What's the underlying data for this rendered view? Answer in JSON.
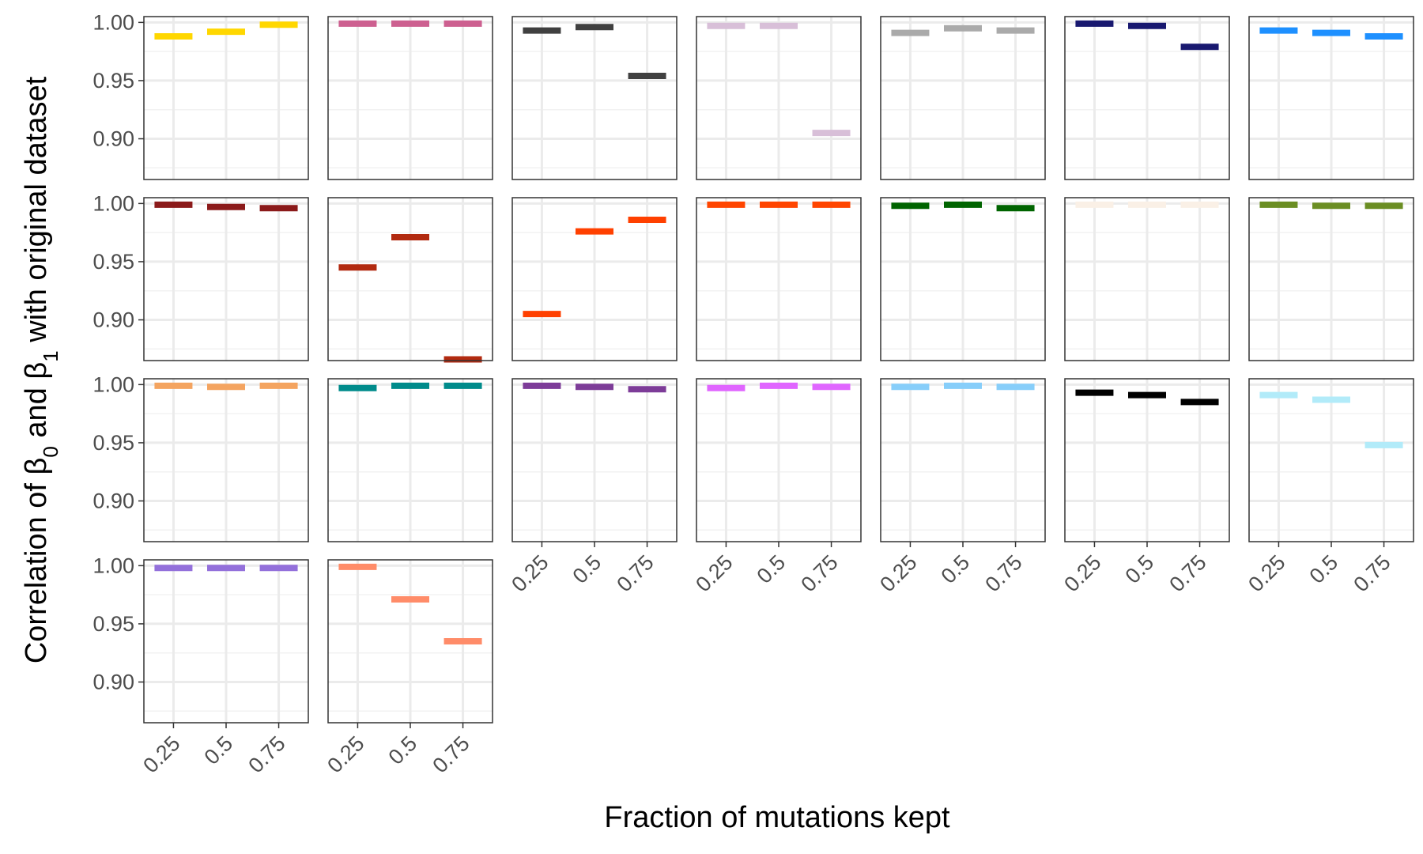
{
  "chart_data": {
    "type": "facet_segment",
    "xlabel": "Fraction of mutations kept",
    "ylabel": {
      "prefix": "Correlation of ",
      "beta": "β",
      "sub0": "0",
      "mid": " and ",
      "sub1": "1",
      "suffix": " with original dataset"
    },
    "categories": [
      "0.25",
      "0.5",
      "0.75"
    ],
    "yticks": [
      "0.90",
      "0.95",
      "1.00"
    ],
    "ylim": [
      0.865,
      1.005
    ],
    "grid": true,
    "panels": [
      {
        "color": "#FFD700",
        "values": [
          0.988,
          0.992,
          0.998
        ]
      },
      {
        "color": "#CD6090",
        "values": [
          0.999,
          0.999,
          0.999
        ]
      },
      {
        "color": "#404040",
        "values": [
          0.993,
          0.996,
          0.954
        ]
      },
      {
        "color": "#D8BFD8",
        "values": [
          0.997,
          0.997,
          0.905
        ]
      },
      {
        "color": "#AAAAAA",
        "values": [
          0.991,
          0.995,
          0.993
        ]
      },
      {
        "color": "#191970",
        "values": [
          0.999,
          0.997,
          0.979
        ]
      },
      {
        "color": "#1E90FF",
        "values": [
          0.993,
          0.991,
          0.988
        ]
      },
      {
        "color": "#8B1A1A",
        "values": [
          0.999,
          0.997,
          0.996
        ]
      },
      {
        "color": "#B22A10",
        "values": [
          0.945,
          0.971,
          0.866
        ]
      },
      {
        "color": "#FF4000",
        "values": [
          0.905,
          0.976,
          0.986
        ]
      },
      {
        "color": "#FF4500",
        "values": [
          0.999,
          0.999,
          0.999
        ]
      },
      {
        "color": "#006400",
        "values": [
          0.998,
          0.999,
          0.996
        ]
      },
      {
        "color": "#FAF0E6",
        "values": [
          0.999,
          0.999,
          0.999
        ]
      },
      {
        "color": "#6B8E23",
        "values": [
          0.999,
          0.998,
          0.998
        ]
      },
      {
        "color": "#F4A460",
        "values": [
          0.999,
          0.998,
          0.999
        ]
      },
      {
        "color": "#008B8B",
        "values": [
          0.997,
          0.999,
          0.999
        ]
      },
      {
        "color": "#7D3C98",
        "values": [
          0.999,
          0.998,
          0.996
        ]
      },
      {
        "color": "#E066FF",
        "values": [
          0.997,
          0.999,
          0.998
        ]
      },
      {
        "color": "#87CEFA",
        "values": [
          0.998,
          0.999,
          0.998
        ]
      },
      {
        "color": "#000000",
        "values": [
          0.993,
          0.991,
          0.985
        ]
      },
      {
        "color": "#B2EBF9",
        "values": [
          0.991,
          0.987,
          0.948
        ]
      },
      {
        "color": "#9370DB",
        "values": [
          0.998,
          0.998,
          0.998
        ]
      },
      {
        "color": "#FF8C69",
        "values": [
          0.999,
          0.971,
          0.935
        ]
      }
    ]
  }
}
